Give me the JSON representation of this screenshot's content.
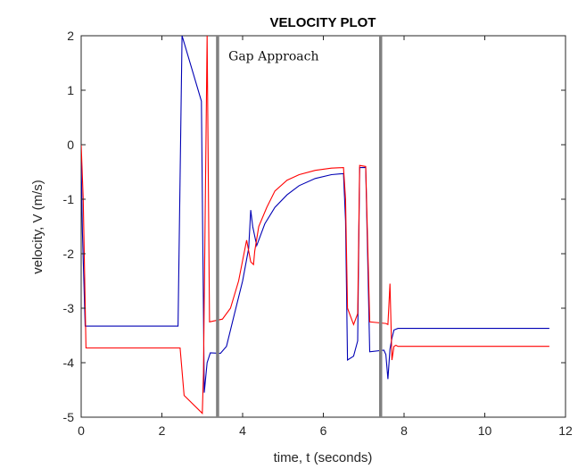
{
  "chart_data": {
    "type": "line",
    "title": "VELOCITY PLOT",
    "xlabel": "time, t (seconds)",
    "ylabel": "velocity, V (m/s)",
    "xlim": [
      0,
      12
    ],
    "ylim": [
      -5,
      2
    ],
    "xticks": [
      0,
      2,
      4,
      6,
      8,
      10,
      12
    ],
    "yticks": [
      2,
      1,
      0,
      -1,
      -2,
      -3,
      -4,
      -5
    ],
    "grid": false,
    "annotations": [
      {
        "text": "Gap Approach",
        "x": 3.65,
        "y": 1.55
      }
    ],
    "vlines": [
      {
        "x": 3.38,
        "color": "#808080"
      },
      {
        "x": 7.42,
        "color": "#808080"
      }
    ],
    "series": [
      {
        "color": "#0000b4",
        "x": [
          0,
          0.03,
          0.1,
          2.4,
          2.5,
          2.98,
          3.05,
          3.12,
          3.2,
          3.45,
          3.6,
          3.8,
          4.0,
          4.15,
          4.2,
          4.25,
          4.35,
          4.55,
          4.8,
          5.1,
          5.4,
          5.8,
          6.2,
          6.5,
          6.55,
          6.6,
          6.75,
          6.85,
          6.9,
          7.05,
          7.15,
          7.5,
          7.55,
          7.6,
          7.65,
          7.7,
          7.75,
          7.85,
          11.6
        ],
        "y": [
          -0.3,
          -1.6,
          -3.33,
          -3.33,
          2.0,
          0.8,
          -4.55,
          -4.0,
          -3.82,
          -3.83,
          -3.7,
          -3.1,
          -2.5,
          -1.9,
          -1.2,
          -1.5,
          -1.85,
          -1.45,
          -1.15,
          -0.92,
          -0.75,
          -0.62,
          -0.55,
          -0.53,
          -1.4,
          -3.95,
          -3.88,
          -3.6,
          -0.42,
          -0.42,
          -3.8,
          -3.77,
          -3.85,
          -4.3,
          -3.75,
          -3.55,
          -3.4,
          -3.37,
          -3.37
        ]
      },
      {
        "color": "#ff0000",
        "x": [
          0,
          0.05,
          0.12,
          2.45,
          2.55,
          3.0,
          3.03,
          3.12,
          3.18,
          3.5,
          3.7,
          3.9,
          4.1,
          4.2,
          4.27,
          4.3,
          4.4,
          4.6,
          4.8,
          5.1,
          5.4,
          5.8,
          6.2,
          6.5,
          6.55,
          6.6,
          6.75,
          6.85,
          6.9,
          7.05,
          7.15,
          7.55,
          7.6,
          7.65,
          7.7,
          7.75,
          7.8,
          7.85,
          11.6
        ],
        "y": [
          0.0,
          -1.0,
          -3.73,
          -3.73,
          -4.6,
          -4.93,
          -4.2,
          2.0,
          -3.25,
          -3.2,
          -3.0,
          -2.5,
          -1.75,
          -2.15,
          -2.2,
          -1.95,
          -1.5,
          -1.15,
          -0.85,
          -0.65,
          -0.55,
          -0.47,
          -0.43,
          -0.42,
          -1.0,
          -3.0,
          -3.3,
          -3.1,
          -0.38,
          -0.4,
          -3.25,
          -3.28,
          -3.3,
          -2.55,
          -3.95,
          -3.7,
          -3.68,
          -3.7,
          -3.7
        ]
      }
    ]
  }
}
